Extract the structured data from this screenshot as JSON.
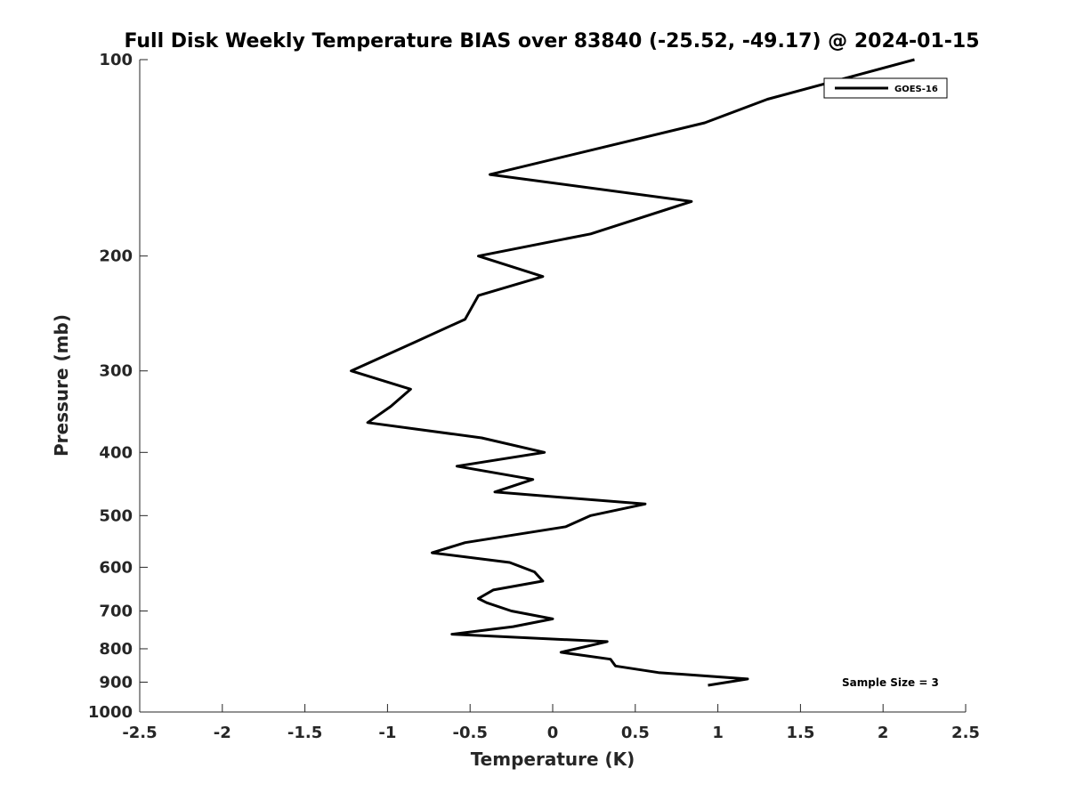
{
  "chart_data": {
    "type": "line",
    "title": "Full Disk Weekly Temperature BIAS over 83840 (-25.52, -49.17) @ 2024-01-15",
    "xlabel": "Temperature (K)",
    "ylabel": "Pressure (mb)",
    "xlim": [
      -2.5,
      2.5
    ],
    "ylim": [
      100,
      1000
    ],
    "yscale": "log",
    "yreversed": true,
    "xticks": [
      -2.5,
      -2,
      -1.5,
      -1,
      -0.5,
      0,
      0.5,
      1,
      1.5,
      2,
      2.5
    ],
    "xtick_labels": [
      "-2.5",
      "-2",
      "-1.5",
      "-1",
      "-0.5",
      "0",
      "0.5",
      "1",
      "1.5",
      "2",
      "2.5"
    ],
    "yticks": [
      100,
      200,
      300,
      400,
      500,
      600,
      700,
      800,
      900,
      1000
    ],
    "ytick_labels": [
      "100",
      "200",
      "300",
      "400",
      "500",
      "600",
      "700",
      "800",
      "900",
      "1000"
    ],
    "grid": false,
    "legend_position": "top-right",
    "annotation": "Sample Size = 3",
    "series": [
      {
        "name": "GOES-16",
        "color": "#000000",
        "points": [
          [
            2.19,
            100
          ],
          [
            1.3,
            115
          ],
          [
            0.92,
            125
          ],
          [
            -0.38,
            150
          ],
          [
            0.84,
            165
          ],
          [
            0.23,
            185
          ],
          [
            -0.45,
            200
          ],
          [
            -0.06,
            215
          ],
          [
            -0.45,
            230
          ],
          [
            -0.53,
            250
          ],
          [
            -0.82,
            270
          ],
          [
            -1.22,
            300
          ],
          [
            -0.86,
            320
          ],
          [
            -0.98,
            340
          ],
          [
            -1.12,
            360
          ],
          [
            -0.43,
            380
          ],
          [
            -0.05,
            400
          ],
          [
            -0.58,
            420
          ],
          [
            -0.12,
            440
          ],
          [
            -0.35,
            460
          ],
          [
            0.56,
            480
          ],
          [
            0.23,
            500
          ],
          [
            0.08,
            520
          ],
          [
            -0.53,
            550
          ],
          [
            -0.73,
            570
          ],
          [
            -0.26,
            590
          ],
          [
            -0.11,
            610
          ],
          [
            -0.06,
            630
          ],
          [
            -0.36,
            650
          ],
          [
            -0.45,
            670
          ],
          [
            -0.4,
            680
          ],
          [
            -0.25,
            700
          ],
          [
            0.0,
            720
          ],
          [
            -0.24,
            740
          ],
          [
            -0.61,
            760
          ],
          [
            0.33,
            780
          ],
          [
            0.05,
            810
          ],
          [
            0.35,
            830
          ],
          [
            0.38,
            850
          ],
          [
            0.64,
            870
          ],
          [
            1.18,
            890
          ],
          [
            0.94,
            910
          ]
        ]
      }
    ]
  }
}
